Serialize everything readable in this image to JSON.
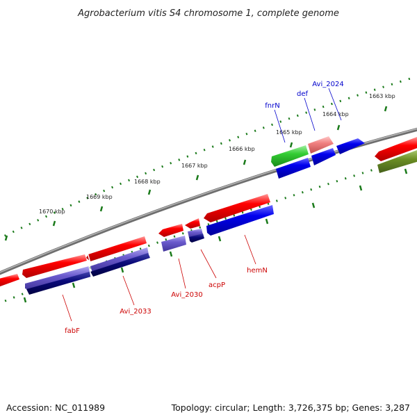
{
  "title": "Agrobacterium vitis S4 chromosome 1, complete genome",
  "footer": {
    "accession": "Accession: NC_011989",
    "summary": "Topology: circular; Length: 3,726,375 bp; Genes: 3,287"
  },
  "scale_ticks": [
    {
      "label": "1670 kbp"
    },
    {
      "label": "1669 kbp"
    },
    {
      "label": "1668 kbp"
    },
    {
      "label": "1667 kbp"
    },
    {
      "label": "1666 kbp"
    },
    {
      "label": "1665 kbp"
    },
    {
      "label": "1664 kbp"
    },
    {
      "label": "1663 kbp"
    }
  ],
  "gene_labels": [
    {
      "text": "fnrN",
      "color": "#0000cc"
    },
    {
      "text": "def",
      "color": "#0000cc"
    },
    {
      "text": "Avi_2024",
      "color": "#0000cc"
    },
    {
      "text": "fabF",
      "color": "#cc0000"
    },
    {
      "text": "Avi_2033",
      "color": "#cc0000"
    },
    {
      "text": "Avi_2030",
      "color": "#cc0000"
    },
    {
      "text": "acpP",
      "color": "#cc0000"
    },
    {
      "text": "hemN",
      "color": "#cc0000"
    }
  ],
  "colors": {
    "forward_cds": "#ff0000",
    "reverse_cds": "#0000ee",
    "cog_purple": "#6a5acd",
    "cog_navy": "#0a0a7a",
    "cog_green": "#33cc33",
    "cog_olive": "#6b8e23",
    "cog_pink": "#f08080",
    "backbone": "#808080",
    "ticks": "#1a7a1a"
  }
}
